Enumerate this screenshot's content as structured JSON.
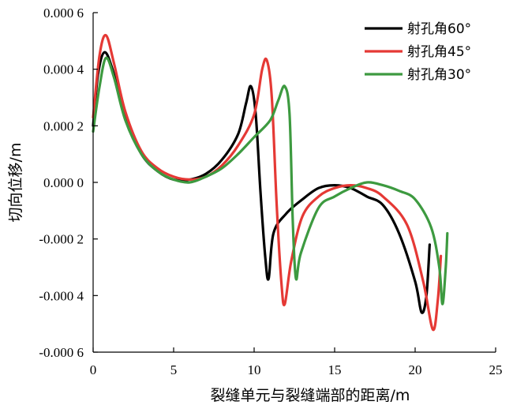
{
  "chart_data": {
    "type": "line",
    "xlabel": "裂缝单元与裂缝端部的距离/m",
    "ylabel": "切向位移/m",
    "xlim": [
      0,
      25
    ],
    "ylim": [
      -0.0006,
      0.0006
    ],
    "x_ticks": [
      0,
      5,
      10,
      15,
      20,
      25
    ],
    "x_tick_labels": [
      "0",
      "5",
      "10",
      "15",
      "20",
      "25"
    ],
    "y_ticks": [
      0.0006,
      0.0004,
      0.0002,
      0.0,
      -0.0002,
      -0.0004,
      -0.0006
    ],
    "y_tick_labels": [
      "0.000 6",
      "0.000 4",
      "0.000 2",
      "0.000 0",
      "-0.000 2",
      "-0.000 4",
      "-0.000 6"
    ],
    "grid": false,
    "legend_position": "top-right",
    "series": [
      {
        "name": "射孔角60°",
        "color": "#000000",
        "points": [
          [
            0,
            0.0002
          ],
          [
            0.3,
            0.00038
          ],
          [
            0.7,
            0.00046
          ],
          [
            1.2,
            0.0004
          ],
          [
            2.0,
            0.00023
          ],
          [
            3.0,
            0.0001
          ],
          [
            4.0,
            4e-05
          ],
          [
            5.0,
            1e-05
          ],
          [
            6.0,
            1e-05
          ],
          [
            7.0,
            3e-05
          ],
          [
            8.0,
            8e-05
          ],
          [
            9.0,
            0.00017
          ],
          [
            9.5,
            0.00028
          ],
          [
            9.8,
            0.00034
          ],
          [
            10.1,
            0.00024
          ],
          [
            10.4,
            -4e-05
          ],
          [
            10.7,
            -0.00027
          ],
          [
            10.9,
            -0.00034
          ],
          [
            11.2,
            -0.00018
          ],
          [
            12.0,
            -0.00011
          ],
          [
            13.0,
            -6e-05
          ],
          [
            14.0,
            -2e-05
          ],
          [
            15.0,
            -1e-05
          ],
          [
            16.0,
            -2e-05
          ],
          [
            17.0,
            -5e-05
          ],
          [
            18.0,
            -8e-05
          ],
          [
            19.0,
            -0.00018
          ],
          [
            20.0,
            -0.00035
          ],
          [
            20.4,
            -0.00046
          ],
          [
            20.7,
            -0.0004
          ],
          [
            20.9,
            -0.00022
          ]
        ]
      },
      {
        "name": "射孔角45°",
        "color": "#e53935",
        "points": [
          [
            0,
            0.00023
          ],
          [
            0.4,
            0.00045
          ],
          [
            0.8,
            0.00052
          ],
          [
            1.3,
            0.00042
          ],
          [
            2.0,
            0.00025
          ],
          [
            3.0,
            0.00011
          ],
          [
            4.0,
            5e-05
          ],
          [
            5.0,
            2e-05
          ],
          [
            6.0,
            1e-05
          ],
          [
            7.0,
            2e-05
          ],
          [
            8.0,
            6e-05
          ],
          [
            9.0,
            0.00013
          ],
          [
            10.0,
            0.00024
          ],
          [
            10.5,
            0.0004
          ],
          [
            10.8,
            0.00043
          ],
          [
            11.1,
            0.0003
          ],
          [
            11.4,
            -8e-05
          ],
          [
            11.7,
            -0.00036
          ],
          [
            11.9,
            -0.00043
          ],
          [
            12.3,
            -0.00028
          ],
          [
            13.0,
            -0.00012
          ],
          [
            14.0,
            -5e-05
          ],
          [
            15.0,
            -2e-05
          ],
          [
            16.0,
            -1e-05
          ],
          [
            17.0,
            -2e-05
          ],
          [
            18.0,
            -5e-05
          ],
          [
            19.5,
            -0.00015
          ],
          [
            20.5,
            -0.00035
          ],
          [
            21.1,
            -0.00052
          ],
          [
            21.4,
            -0.00042
          ],
          [
            21.6,
            -0.00026
          ]
        ]
      },
      {
        "name": "射孔角30°",
        "color": "#3d9a40",
        "points": [
          [
            0,
            0.00018
          ],
          [
            0.4,
            0.00034
          ],
          [
            0.8,
            0.00044
          ],
          [
            1.3,
            0.00037
          ],
          [
            2.0,
            0.00022
          ],
          [
            3.0,
            0.0001
          ],
          [
            4.0,
            4e-05
          ],
          [
            5.0,
            1e-05
          ],
          [
            6.0,
            0.0
          ],
          [
            7.0,
            2e-05
          ],
          [
            8.0,
            5e-05
          ],
          [
            9.0,
            0.0001
          ],
          [
            10.0,
            0.00016
          ],
          [
            11.0,
            0.00022
          ],
          [
            11.5,
            0.00029
          ],
          [
            11.9,
            0.00034
          ],
          [
            12.2,
            0.00024
          ],
          [
            12.4,
            -0.00014
          ],
          [
            12.6,
            -0.00034
          ],
          [
            12.9,
            -0.00025
          ],
          [
            14.0,
            -9e-05
          ],
          [
            15.0,
            -5e-05
          ],
          [
            16.0,
            -2e-05
          ],
          [
            17.0,
            0.0
          ],
          [
            18.0,
            -1e-05
          ],
          [
            19.0,
            -3e-05
          ],
          [
            20.0,
            -6e-05
          ],
          [
            21.0,
            -0.00016
          ],
          [
            21.5,
            -0.0003
          ],
          [
            21.7,
            -0.00043
          ],
          [
            21.9,
            -0.0003
          ],
          [
            22.0,
            -0.00018
          ]
        ]
      }
    ]
  }
}
